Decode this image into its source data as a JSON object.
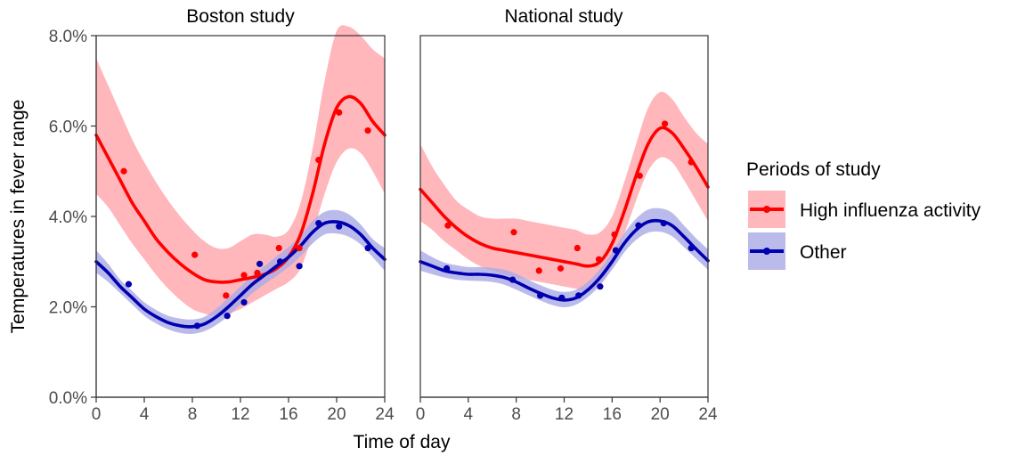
{
  "chart_data": {
    "type": "line",
    "xlabel": "Time of day",
    "ylabel": "Temperatures in fever range",
    "xlim": [
      0,
      24
    ],
    "ylim": [
      0,
      8
    ],
    "x_ticks": [
      "0",
      "4",
      "8",
      "12",
      "16",
      "20",
      "24"
    ],
    "y_ticks": [
      "0.0%",
      "2.0%",
      "4.0%",
      "6.0%",
      "8.0%"
    ],
    "grid": false,
    "legend": {
      "title": "Periods of study",
      "position": "right",
      "entries": [
        "High influenza activity",
        "Other"
      ]
    },
    "colors": {
      "high_line": "#ff0000",
      "high_band": "#ffb3b8",
      "other_line": "#0000b0",
      "other_band": "#aaaae6"
    },
    "panels": [
      {
        "title": "Boston study",
        "series": [
          {
            "name": "High influenza activity",
            "curve": {
              "x": [
                0,
                1,
                2,
                3,
                4,
                5,
                6,
                7,
                8,
                9,
                10,
                11,
                12,
                13,
                14,
                15,
                16,
                17,
                18,
                19,
                20,
                21,
                22,
                23,
                24
              ],
              "y": [
                5.8,
                5.3,
                4.8,
                4.3,
                3.9,
                3.5,
                3.2,
                2.95,
                2.75,
                2.6,
                2.55,
                2.55,
                2.6,
                2.65,
                2.72,
                2.85,
                3.1,
                3.6,
                4.5,
                5.6,
                6.4,
                6.65,
                6.5,
                6.1,
                5.8
              ],
              "lower": [
                4.5,
                4.2,
                3.8,
                3.4,
                3.05,
                2.7,
                2.4,
                2.15,
                1.95,
                1.85,
                1.8,
                1.85,
                1.95,
                2.1,
                2.25,
                2.4,
                2.55,
                2.85,
                3.6,
                4.5,
                5.2,
                5.5,
                5.4,
                5.0,
                4.5
              ],
              "upper": [
                7.5,
                6.9,
                6.3,
                5.7,
                5.2,
                4.75,
                4.35,
                4.0,
                3.7,
                3.45,
                3.3,
                3.3,
                3.45,
                3.6,
                3.6,
                3.55,
                3.7,
                4.3,
                5.5,
                7.0,
                8.1,
                8.2,
                8.0,
                7.7,
                7.5
              ]
            },
            "points": {
              "x": [
                2.3,
                8.2,
                10.8,
                12.3,
                13.4,
                15.2,
                16.9,
                18.5,
                20.2,
                22.6
              ],
              "y": [
                5.0,
                3.15,
                2.25,
                2.7,
                2.75,
                3.3,
                3.3,
                5.25,
                6.3,
                5.9
              ]
            }
          },
          {
            "name": "Other",
            "curve": {
              "x": [
                0,
                1,
                2,
                3,
                4,
                5,
                6,
                7,
                8,
                9,
                10,
                11,
                12,
                13,
                14,
                15,
                16,
                17,
                18,
                19,
                20,
                21,
                22,
                23,
                24
              ],
              "y": [
                3.0,
                2.75,
                2.45,
                2.2,
                1.95,
                1.78,
                1.65,
                1.58,
                1.56,
                1.62,
                1.78,
                2.0,
                2.25,
                2.5,
                2.7,
                2.9,
                3.1,
                3.35,
                3.65,
                3.85,
                3.88,
                3.8,
                3.6,
                3.3,
                3.05
              ],
              "lower": [
                2.75,
                2.55,
                2.3,
                2.05,
                1.8,
                1.63,
                1.5,
                1.42,
                1.4,
                1.46,
                1.6,
                1.8,
                2.05,
                2.3,
                2.5,
                2.68,
                2.88,
                3.12,
                3.4,
                3.6,
                3.62,
                3.55,
                3.38,
                3.1,
                2.8
              ],
              "upper": [
                3.25,
                2.95,
                2.6,
                2.35,
                2.1,
                1.93,
                1.8,
                1.74,
                1.72,
                1.78,
                1.96,
                2.2,
                2.45,
                2.7,
                2.9,
                3.12,
                3.32,
                3.58,
                3.9,
                4.1,
                4.14,
                4.05,
                3.82,
                3.5,
                3.3
              ]
            },
            "points": {
              "x": [
                2.7,
                8.4,
                10.9,
                12.3,
                13.6,
                15.3,
                16.9,
                18.5,
                20.2,
                22.6
              ],
              "y": [
                2.5,
                1.58,
                1.8,
                2.1,
                2.95,
                3.0,
                2.9,
                3.85,
                3.78,
                3.3
              ]
            }
          }
        ]
      },
      {
        "title": "National study",
        "series": [
          {
            "name": "High influenza activity",
            "curve": {
              "x": [
                0,
                1,
                2,
                3,
                4,
                5,
                6,
                7,
                8,
                9,
                10,
                11,
                12,
                13,
                14,
                15,
                16,
                17,
                18,
                19,
                20,
                21,
                22,
                23,
                24
              ],
              "y": [
                4.6,
                4.3,
                4.0,
                3.75,
                3.55,
                3.4,
                3.3,
                3.25,
                3.2,
                3.15,
                3.1,
                3.05,
                3.0,
                2.95,
                2.9,
                3.0,
                3.4,
                4.1,
                4.9,
                5.6,
                5.95,
                5.85,
                5.5,
                5.1,
                4.65
              ],
              "lower": [
                3.9,
                3.7,
                3.45,
                3.25,
                3.05,
                2.9,
                2.8,
                2.72,
                2.65,
                2.6,
                2.55,
                2.5,
                2.45,
                2.4,
                2.35,
                2.5,
                2.9,
                3.6,
                4.35,
                5.0,
                5.3,
                5.2,
                4.8,
                4.35,
                3.9
              ],
              "upper": [
                5.6,
                5.1,
                4.7,
                4.35,
                4.15,
                4.0,
                3.95,
                3.95,
                3.95,
                3.9,
                3.85,
                3.8,
                3.75,
                3.7,
                3.6,
                3.65,
                4.0,
                4.75,
                5.6,
                6.4,
                6.75,
                6.6,
                6.2,
                5.85,
                5.6
              ]
            },
            "points": {
              "x": [
                2.3,
                7.8,
                9.9,
                11.7,
                13.1,
                14.9,
                16.2,
                18.3,
                20.4,
                22.6
              ],
              "y": [
                3.8,
                3.65,
                2.8,
                2.85,
                3.3,
                3.05,
                3.6,
                4.9,
                6.05,
                5.2
              ]
            }
          },
          {
            "name": "Other",
            "curve": {
              "x": [
                0,
                1,
                2,
                3,
                4,
                5,
                6,
                7,
                8,
                9,
                10,
                11,
                12,
                13,
                14,
                15,
                16,
                17,
                18,
                19,
                20,
                21,
                22,
                23,
                24
              ],
              "y": [
                3.0,
                2.9,
                2.8,
                2.75,
                2.72,
                2.72,
                2.7,
                2.65,
                2.55,
                2.42,
                2.3,
                2.2,
                2.15,
                2.2,
                2.38,
                2.65,
                3.0,
                3.4,
                3.7,
                3.88,
                3.9,
                3.8,
                3.55,
                3.28,
                3.02
              ],
              "lower": [
                2.8,
                2.72,
                2.65,
                2.6,
                2.58,
                2.57,
                2.55,
                2.49,
                2.38,
                2.26,
                2.14,
                2.04,
                1.99,
                2.05,
                2.22,
                2.48,
                2.82,
                3.2,
                3.48,
                3.64,
                3.66,
                3.56,
                3.32,
                3.07,
                2.82
              ],
              "upper": [
                3.25,
                3.1,
                2.98,
                2.92,
                2.88,
                2.88,
                2.86,
                2.82,
                2.73,
                2.6,
                2.48,
                2.38,
                2.33,
                2.38,
                2.56,
                2.84,
                3.2,
                3.62,
                3.95,
                4.15,
                4.18,
                4.08,
                3.8,
                3.52,
                3.27
              ]
            },
            "points": {
              "x": [
                2.2,
                7.7,
                10.0,
                11.8,
                13.2,
                15.0,
                16.3,
                18.2,
                20.3,
                22.6
              ],
              "y": [
                2.85,
                2.6,
                2.25,
                2.2,
                2.25,
                2.45,
                3.25,
                3.8,
                3.85,
                3.3
              ]
            }
          }
        ]
      }
    ]
  }
}
